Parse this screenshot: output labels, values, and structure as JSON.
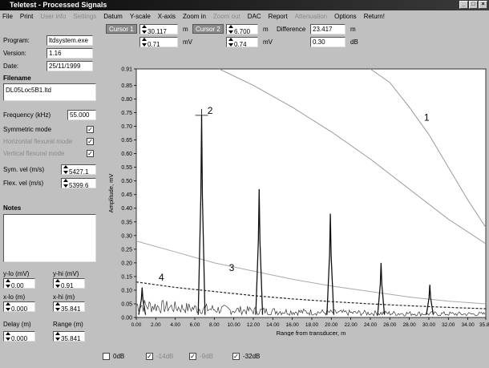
{
  "window": {
    "title": "Teletest - Processed Signals"
  },
  "menu": [
    {
      "label": "File",
      "disabled": false
    },
    {
      "label": "Print",
      "disabled": false
    },
    {
      "label": "User info",
      "disabled": true
    },
    {
      "label": "Settings",
      "disabled": true
    },
    {
      "label": "Datum",
      "disabled": false
    },
    {
      "label": "Y-scale",
      "disabled": false
    },
    {
      "label": "X-axis",
      "disabled": false
    },
    {
      "label": "Zoom in",
      "disabled": false
    },
    {
      "label": "Zoom out",
      "disabled": true
    },
    {
      "label": "DAC",
      "disabled": false
    },
    {
      "label": "Report",
      "disabled": false
    },
    {
      "label": "Attenuation",
      "disabled": true
    },
    {
      "label": "Options",
      "disabled": false
    },
    {
      "label": "Return!",
      "disabled": false
    }
  ],
  "info": {
    "program_label": "Program:",
    "program_value": "ltdsystem.exe",
    "version_label": "Version:",
    "version_value": "1.16",
    "date_label": "Date:",
    "date_value": "25/11/1999",
    "filename_label": "Filename",
    "filename_value": "DL05Loc5B1.ltd",
    "frequency_label": "Frequency (kHz)",
    "frequency_value": "55.000"
  },
  "modes": {
    "symmetric_label": "Symmetric mode",
    "symmetric_checked": "✓",
    "horizontal_label": "Horizontal flexural mode",
    "horizontal_checked": "✓",
    "vertical_label": "Vertical flexural mode",
    "vertical_checked": "✓"
  },
  "velocities": {
    "sym_label": "Sym. vel (m/s)",
    "sym_value": "5427.1",
    "flex_label": "Flex. vel (m/s)",
    "flex_value": "5399.6"
  },
  "notes": {
    "label": "Notes"
  },
  "limits": {
    "ylo_label": "y-lo (mV)",
    "ylo_value": "0.00",
    "yhi_label": "y-hi (mV)",
    "yhi_value": "0.91",
    "xlo_label": "x-lo (m)",
    "xlo_value": "0.000",
    "xhi_label": "x-hi (m)",
    "xhi_value": "35.841",
    "delay_label": "Delay (m)",
    "delay_value": "0.000",
    "range_label": "Range (m)",
    "range_value": "35.841"
  },
  "cursors": {
    "cursor1_label": "Cursor 1",
    "cursor1_x": "30.117",
    "cursor1_x_unit": "m",
    "cursor1_y": "0.71",
    "cursor1_y_unit": "mV",
    "cursor2_label": "Cursor 2",
    "cursor2_x": "6.700",
    "cursor2_x_unit": "m",
    "cursor2_y": "0.74",
    "cursor2_y_unit": "mV",
    "difference_label": "Difference",
    "difference_x": "23.417",
    "difference_x_unit": "m",
    "difference_y": "0.30",
    "difference_y_unit": "dB"
  },
  "dac_options": [
    {
      "label": "0dB",
      "checked": "",
      "disabled": false
    },
    {
      "label": "-14dB",
      "checked": "✓",
      "disabled": true
    },
    {
      "label": "-9dB",
      "checked": "✓",
      "disabled": true
    },
    {
      "label": "-32dB",
      "checked": "✓",
      "disabled": false
    }
  ],
  "chart_data": {
    "type": "line",
    "xlabel": "Range from transducer, m",
    "ylabel": "Amplitude, mV",
    "xlim": [
      0,
      35.84
    ],
    "ylim": [
      0,
      0.91
    ],
    "x_ticks": [
      "0.00",
      "2.00",
      "4.00",
      "6.00",
      "8.00",
      "10.00",
      "12.00",
      "14.00",
      "16.00",
      "18.00",
      "20.00",
      "22.00",
      "24.00",
      "26.00",
      "28.00",
      "30.00",
      "32.00",
      "34.00",
      "35.84"
    ],
    "y_ticks": [
      "0.00",
      "0.05",
      "0.10",
      "0.15",
      "0.20",
      "0.25",
      "0.30",
      "0.35",
      "0.40",
      "0.45",
      "0.50",
      "0.55",
      "0.60",
      "0.65",
      "0.70",
      "0.75",
      "0.80",
      "0.85",
      "0.91"
    ],
    "peaks": [
      {
        "x": 0.6,
        "y": 0.11
      },
      {
        "x": 6.7,
        "y": 0.74
      },
      {
        "x": 12.6,
        "y": 0.47
      },
      {
        "x": 19.9,
        "y": 0.38
      },
      {
        "x": 25.1,
        "y": 0.2
      },
      {
        "x": 30.1,
        "y": 0.12
      }
    ],
    "dac_curves": [
      {
        "name": "1",
        "points": [
          [
            8.5,
            0.91
          ],
          [
            12,
            0.85
          ],
          [
            16,
            0.77
          ],
          [
            20,
            0.68
          ],
          [
            24,
            0.58
          ],
          [
            28,
            0.47
          ],
          [
            32,
            0.36
          ],
          [
            35.84,
            0.27
          ]
        ]
      },
      {
        "name": "1",
        "points": [
          [
            24,
            0.91
          ],
          [
            26,
            0.86
          ],
          [
            28,
            0.77
          ],
          [
            30,
            0.67
          ],
          [
            32,
            0.55
          ],
          [
            34,
            0.43
          ],
          [
            35.84,
            0.33
          ]
        ]
      },
      {
        "name": "3",
        "points": [
          [
            0,
            0.28
          ],
          [
            4,
            0.24
          ],
          [
            8,
            0.2
          ],
          [
            12,
            0.17
          ],
          [
            16,
            0.14
          ],
          [
            20,
            0.115
          ],
          [
            24,
            0.095
          ],
          [
            28,
            0.075
          ],
          [
            32,
            0.06
          ],
          [
            35.84,
            0.05
          ]
        ]
      },
      {
        "name": "4",
        "points": [
          [
            0,
            0.13
          ],
          [
            4,
            0.11
          ],
          [
            8,
            0.095
          ],
          [
            12,
            0.08
          ],
          [
            16,
            0.068
          ],
          [
            20,
            0.058
          ],
          [
            24,
            0.05
          ],
          [
            28,
            0.043
          ],
          [
            32,
            0.037
          ],
          [
            35.84,
            0.032
          ]
        ]
      }
    ],
    "annotations": [
      {
        "text": "1",
        "x": 29.5,
        "y": 0.72
      },
      {
        "text": "2",
        "x": 7.3,
        "y": 0.745
      },
      {
        "text": "3",
        "x": 9.5,
        "y": 0.17
      },
      {
        "text": "4",
        "x": 2.3,
        "y": 0.135
      }
    ],
    "cursor_marker": {
      "x": 6.7,
      "y": 0.74
    }
  }
}
